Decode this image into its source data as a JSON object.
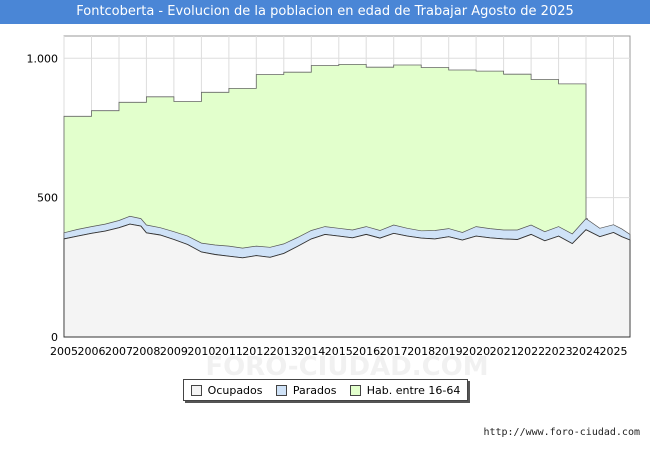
{
  "chart_data": {
    "type": "area",
    "title": "Fontcoberta - Evolucion de la poblacion en edad de Trabajar Agosto de 2025",
    "xlabel": "",
    "ylabel": "",
    "ylim": [
      0,
      1080
    ],
    "xlim": [
      2005,
      2025.6
    ],
    "y_ticks": [
      0,
      500,
      1000
    ],
    "y_tick_labels": [
      "0",
      "500",
      "1.000"
    ],
    "x_tick_labels": [
      "2005",
      "2006",
      "2007",
      "2008",
      "2009",
      "2010",
      "2011",
      "2012",
      "2013",
      "2014",
      "2015",
      "2016",
      "2017",
      "2018",
      "2019",
      "2020",
      "2021",
      "2022",
      "2023",
      "2024",
      "2025"
    ],
    "grid": true,
    "watermark": "FORO-CIUDAD.COM",
    "legend": [
      {
        "name": "Ocupados",
        "color": "#f4f4f4"
      },
      {
        "name": "Parados",
        "color": "#cfe2f7"
      },
      {
        "name": "Hab. entre 16-64",
        "color": "#e2ffcc"
      }
    ],
    "series": [
      {
        "name": "Hab. entre 16-64",
        "x": [
          2005,
          2006,
          2007,
          2008,
          2009,
          2010,
          2011,
          2012,
          2013,
          2014,
          2015,
          2016,
          2017,
          2018,
          2019,
          2020,
          2021,
          2022,
          2023,
          2024
        ],
        "values": [
          792,
          812,
          842,
          862,
          845,
          878,
          892,
          942,
          950,
          974,
          978,
          968,
          976,
          967,
          958,
          954,
          943,
          924,
          908,
          425
        ]
      },
      {
        "name": "Ocupados",
        "x": [
          2005,
          2005.5,
          2006,
          2006.5,
          2007,
          2007.4,
          2007.8,
          2008,
          2008.5,
          2009,
          2009.5,
          2010,
          2010.5,
          2011,
          2011.5,
          2012,
          2012.5,
          2013,
          2013.5,
          2014,
          2014.5,
          2015,
          2015.5,
          2016,
          2016.5,
          2017,
          2017.5,
          2018,
          2018.5,
          2019,
          2019.5,
          2020,
          2020.5,
          2021,
          2021.5,
          2022,
          2022.5,
          2023,
          2023.5,
          2024,
          2024.5,
          2025,
          2025.3,
          2025.6
        ],
        "values": [
          352,
          362,
          372,
          380,
          392,
          405,
          398,
          374,
          366,
          350,
          332,
          305,
          296,
          290,
          284,
          292,
          286,
          300,
          325,
          352,
          368,
          362,
          356,
          368,
          355,
          372,
          362,
          355,
          352,
          360,
          348,
          362,
          356,
          352,
          350,
          368,
          345,
          362,
          335,
          385,
          360,
          375,
          360,
          348
        ]
      },
      {
        "name": "Parados",
        "x": [
          2005,
          2005.5,
          2006,
          2006.5,
          2007,
          2007.4,
          2007.8,
          2008,
          2008.5,
          2009,
          2009.5,
          2010,
          2010.5,
          2011,
          2011.5,
          2012,
          2012.5,
          2013,
          2013.5,
          2014,
          2014.5,
          2015,
          2015.5,
          2016,
          2016.5,
          2017,
          2017.5,
          2018,
          2018.5,
          2019,
          2019.5,
          2020,
          2020.5,
          2021,
          2021.5,
          2022,
          2022.5,
          2023,
          2023.5,
          2024,
          2024.5,
          2025,
          2025.3,
          2025.6
        ],
        "values": [
          22,
          24,
          24,
          25,
          26,
          28,
          27,
          28,
          26,
          28,
          30,
          32,
          34,
          36,
          35,
          34,
          36,
          34,
          32,
          30,
          28,
          28,
          28,
          28,
          27,
          30,
          28,
          26,
          30,
          29,
          27,
          34,
          33,
          32,
          34,
          34,
          33,
          34,
          35,
          40,
          30,
          28,
          28,
          20
        ]
      }
    ]
  },
  "source": "http://www.foro-ciudad.com"
}
